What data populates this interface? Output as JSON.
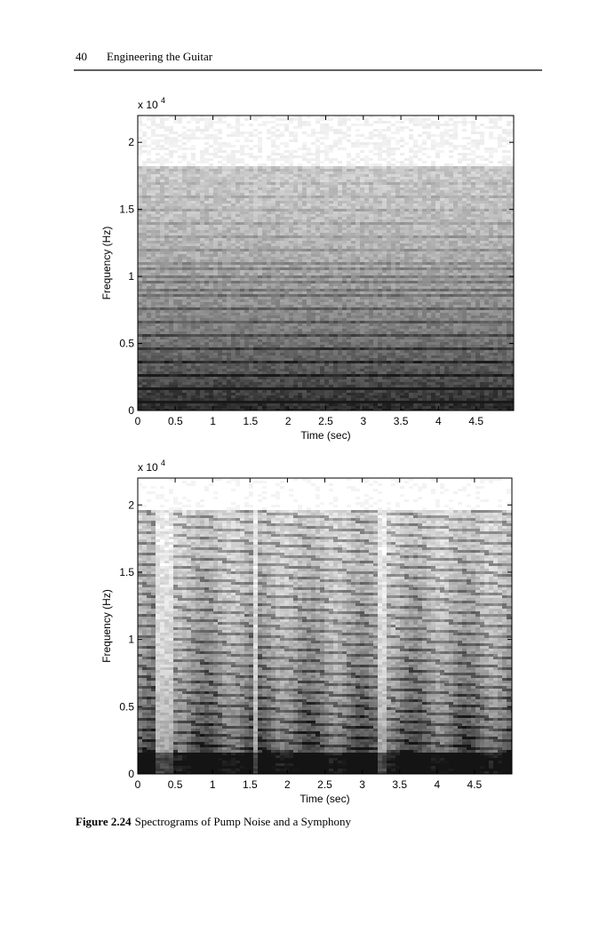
{
  "header": {
    "page_number": "40",
    "title": "Engineering the Guitar"
  },
  "chart_data": [
    {
      "type": "spectrogram",
      "xlabel": "Time (sec)",
      "ylabel": "Frequency (Hz)",
      "y_scale_label": "x 10",
      "y_scale_exponent": "4",
      "xlim": [
        0,
        5
      ],
      "ylim": [
        0,
        2.2
      ],
      "xticks": [
        0,
        0.5,
        1,
        1.5,
        2,
        2.5,
        3,
        3.5,
        4,
        4.5
      ],
      "yticks": [
        0,
        0.5,
        1,
        1.5,
        2
      ]
    },
    {
      "type": "spectrogram",
      "xlabel": "Time (sec)",
      "ylabel": "Frequency (Hz)",
      "y_scale_label": "x 10",
      "y_scale_exponent": "4",
      "xlim": [
        0,
        5
      ],
      "ylim": [
        0,
        2.2
      ],
      "xticks": [
        0,
        0.5,
        1,
        1.5,
        2,
        2.5,
        3,
        3.5,
        4,
        4.5
      ],
      "yticks": [
        0,
        0.5,
        1,
        1.5,
        2
      ]
    }
  ],
  "caption": {
    "label": "Figure 2.24",
    "text": "Spectrograms of Pump Noise and a Symphony"
  }
}
